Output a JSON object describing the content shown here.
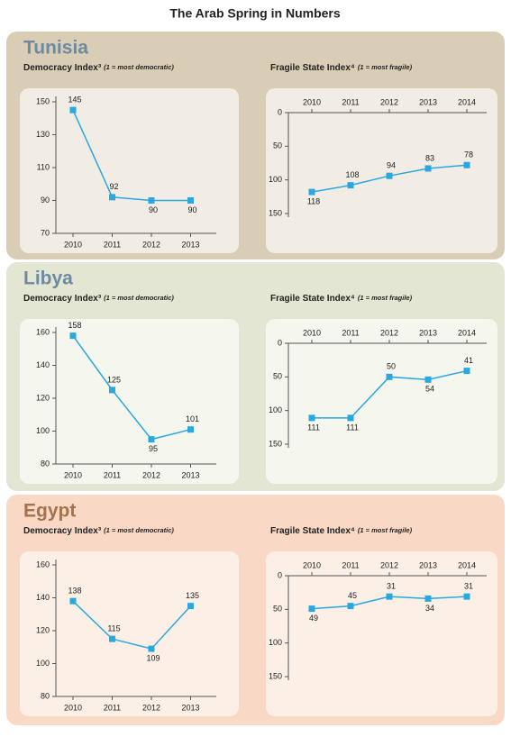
{
  "title": "The Arab Spring in Numbers",
  "sections": [
    {
      "name": "Tunisia"
    },
    {
      "name": "Libya"
    },
    {
      "name": "Egypt"
    }
  ],
  "chart_data": [
    {
      "type": "line",
      "title": "Democracy Index³",
      "subtitle": "(1 = most democratic)",
      "categories": [
        "2010",
        "2011",
        "2012",
        "2013"
      ],
      "values": [
        145,
        92,
        90,
        90
      ],
      "color": "#29a8e0",
      "ylim": [
        70,
        150
      ],
      "yticks": [
        70,
        90,
        110,
        130,
        150
      ],
      "inverted": false
    },
    {
      "type": "line",
      "title": "Fragile State Index⁴",
      "subtitle": "(1 = most fragile)",
      "categories": [
        "2010",
        "2011",
        "2012",
        "2013",
        "2014"
      ],
      "values": [
        118,
        108,
        94,
        83,
        78
      ],
      "color": "#29a8e0",
      "ylim": [
        0,
        150
      ],
      "yticks": [
        0,
        50,
        100,
        150
      ],
      "inverted": true
    },
    {
      "type": "line",
      "title": "Democracy Index³",
      "subtitle": "(1 = most democratic)",
      "categories": [
        "2010",
        "2011",
        "2012",
        "2013"
      ],
      "values": [
        158,
        125,
        95,
        101
      ],
      "color": "#29a8e0",
      "ylim": [
        80,
        160
      ],
      "yticks": [
        80,
        100,
        120,
        140,
        160
      ],
      "inverted": false
    },
    {
      "type": "line",
      "title": "Fragile State Index⁴",
      "subtitle": "(1 = most fragile)",
      "categories": [
        "2010",
        "2011",
        "2012",
        "2013",
        "2014"
      ],
      "values": [
        111,
        111,
        50,
        54,
        41
      ],
      "color": "#29a8e0",
      "ylim": [
        0,
        150
      ],
      "yticks": [
        0,
        50,
        100,
        150
      ],
      "inverted": true
    },
    {
      "type": "line",
      "title": "Democracy Index³",
      "subtitle": "(1 = most democratic)",
      "categories": [
        "2010",
        "2011",
        "2012",
        "2013"
      ],
      "values": [
        138,
        115,
        109,
        135
      ],
      "color": "#29a8e0",
      "ylim": [
        80,
        160
      ],
      "yticks": [
        80,
        100,
        120,
        140,
        160
      ],
      "inverted": false
    },
    {
      "type": "line",
      "title": "Fragile State Index⁴",
      "subtitle": "(1 = most fragile)",
      "categories": [
        "2010",
        "2011",
        "2012",
        "2013",
        "2014"
      ],
      "values": [
        49,
        45,
        31,
        34,
        31
      ],
      "color": "#29a8e0",
      "ylim": [
        0,
        150
      ],
      "yticks": [
        0,
        50,
        100,
        150
      ],
      "inverted": true
    }
  ]
}
